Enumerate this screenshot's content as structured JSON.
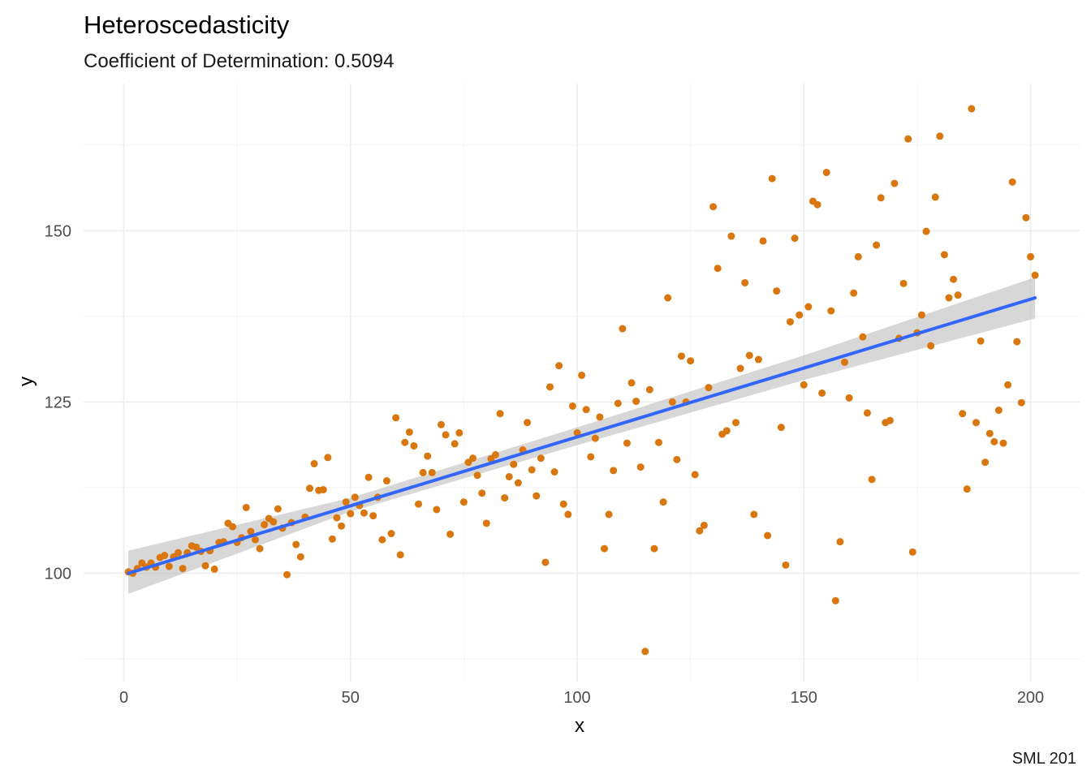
{
  "chart_data": {
    "type": "scatter",
    "title": "Heteroscedasticity",
    "subtitle": "Coefficient of Determination: 0.5094",
    "xlabel": "x",
    "ylabel": "y",
    "caption": "SML 201",
    "xlim": [
      -8,
      210
    ],
    "ylim": [
      87,
      173
    ],
    "x_ticks": [
      0,
      50,
      100,
      150,
      200
    ],
    "y_ticks": [
      100,
      125,
      150
    ],
    "x_tick_labels": [
      "0",
      "50",
      "100",
      "150",
      "200"
    ],
    "y_tick_labels": [
      "100",
      "125",
      "150"
    ],
    "grid": true,
    "point_color": "#d9770e",
    "line_color": "#3366ff",
    "band_color": "#bdbdbd",
    "fit": {
      "x": [
        1,
        201
      ],
      "y": [
        100.0,
        140.2
      ]
    },
    "confidence_band": {
      "x": [
        1,
        50,
        100,
        150,
        201
      ],
      "upper": [
        103.3,
        111.0,
        121.3,
        131.8,
        143.2
      ],
      "lower": [
        97.0,
        109.0,
        118.7,
        128.2,
        137.2
      ]
    },
    "points": [
      [
        1,
        100.2
      ],
      [
        2,
        100.0
      ],
      [
        3,
        100.7
      ],
      [
        4,
        101.5
      ],
      [
        5,
        100.9
      ],
      [
        6,
        101.5
      ],
      [
        7,
        100.9
      ],
      [
        8,
        102.3
      ],
      [
        9,
        102.6
      ],
      [
        10,
        101.0
      ],
      [
        11,
        102.4
      ],
      [
        12,
        103.0
      ],
      [
        13,
        100.7
      ],
      [
        14,
        103.0
      ],
      [
        15,
        104.0
      ],
      [
        16,
        103.8
      ],
      [
        17,
        103.2
      ],
      [
        18,
        101.1
      ],
      [
        19,
        103.3
      ],
      [
        20,
        100.6
      ],
      [
        21,
        104.5
      ],
      [
        22,
        104.6
      ],
      [
        23,
        107.3
      ],
      [
        24,
        106.8
      ],
      [
        25,
        104.5
      ],
      [
        26,
        105.2
      ],
      [
        27,
        109.6
      ],
      [
        28,
        106.1
      ],
      [
        29,
        104.9
      ],
      [
        30,
        103.6
      ],
      [
        31,
        107.1
      ],
      [
        32,
        108.0
      ],
      [
        33,
        107.5
      ],
      [
        34,
        109.4
      ],
      [
        35,
        106.6
      ],
      [
        36,
        99.8
      ],
      [
        37,
        107.4
      ],
      [
        38,
        104.2
      ],
      [
        39,
        102.4
      ],
      [
        40,
        108.2
      ],
      [
        41,
        112.4
      ],
      [
        42,
        116.0
      ],
      [
        43,
        112.1
      ],
      [
        44,
        112.2
      ],
      [
        45,
        116.9
      ],
      [
        46,
        105.0
      ],
      [
        47,
        108.1
      ],
      [
        48,
        106.9
      ],
      [
        49,
        110.4
      ],
      [
        50,
        108.7
      ],
      [
        51,
        111.1
      ],
      [
        52,
        109.9
      ],
      [
        53,
        108.8
      ],
      [
        54,
        114.0
      ],
      [
        55,
        108.4
      ],
      [
        56,
        111.1
      ],
      [
        57,
        104.9
      ],
      [
        58,
        113.5
      ],
      [
        59,
        105.8
      ],
      [
        60,
        122.7
      ],
      [
        61,
        102.7
      ],
      [
        62,
        119.1
      ],
      [
        63,
        120.6
      ],
      [
        64,
        118.6
      ],
      [
        65,
        110.1
      ],
      [
        66,
        114.7
      ],
      [
        67,
        117.1
      ],
      [
        68,
        114.7
      ],
      [
        69,
        109.3
      ],
      [
        70,
        121.7
      ],
      [
        71,
        120.2
      ],
      [
        72,
        105.7
      ],
      [
        73,
        118.9
      ],
      [
        74,
        120.5
      ],
      [
        75,
        110.4
      ],
      [
        76,
        116.2
      ],
      [
        77,
        116.8
      ],
      [
        78,
        114.3
      ],
      [
        79,
        111.7
      ],
      [
        80,
        107.3
      ],
      [
        81,
        116.7
      ],
      [
        82,
        117.3
      ],
      [
        83,
        123.3
      ],
      [
        84,
        111.0
      ],
      [
        85,
        114.1
      ],
      [
        86,
        115.9
      ],
      [
        87,
        113.2
      ],
      [
        88,
        118.0
      ],
      [
        89,
        122.0
      ],
      [
        90,
        115.1
      ],
      [
        91,
        111.3
      ],
      [
        92,
        116.8
      ],
      [
        93,
        101.6
      ],
      [
        94,
        127.2
      ],
      [
        95,
        114.8
      ],
      [
        96,
        130.3
      ],
      [
        97,
        110.1
      ],
      [
        98,
        108.6
      ],
      [
        99,
        124.4
      ],
      [
        100,
        120.5
      ],
      [
        101,
        128.9
      ],
      [
        102,
        123.9
      ],
      [
        103,
        117.0
      ],
      [
        104,
        119.7
      ],
      [
        105,
        122.8
      ],
      [
        106,
        103.6
      ],
      [
        107,
        108.6
      ],
      [
        108,
        115.0
      ],
      [
        109,
        124.8
      ],
      [
        110,
        135.7
      ],
      [
        111,
        119.0
      ],
      [
        112,
        127.8
      ],
      [
        113,
        125.1
      ],
      [
        114,
        115.5
      ],
      [
        115,
        88.6
      ],
      [
        116,
        126.8
      ],
      [
        117,
        103.6
      ],
      [
        118,
        119.1
      ],
      [
        119,
        110.4
      ],
      [
        120,
        140.2
      ],
      [
        121,
        125.0
      ],
      [
        122,
        116.6
      ],
      [
        123,
        131.7
      ],
      [
        124,
        125.0
      ],
      [
        125,
        131.0
      ],
      [
        126,
        114.4
      ],
      [
        127,
        106.2
      ],
      [
        128,
        107.0
      ],
      [
        129,
        127.1
      ],
      [
        130,
        153.5
      ],
      [
        131,
        144.5
      ],
      [
        132,
        120.3
      ],
      [
        133,
        120.8
      ],
      [
        134,
        149.2
      ],
      [
        135,
        122.0
      ],
      [
        136,
        129.9
      ],
      [
        137,
        142.4
      ],
      [
        138,
        131.8
      ],
      [
        139,
        108.6
      ],
      [
        140,
        131.2
      ],
      [
        141,
        148.5
      ],
      [
        142,
        105.5
      ],
      [
        143,
        157.6
      ],
      [
        144,
        141.2
      ],
      [
        145,
        121.3
      ],
      [
        146,
        101.2
      ],
      [
        147,
        136.7
      ],
      [
        148,
        148.9
      ],
      [
        149,
        137.7
      ],
      [
        150,
        127.5
      ],
      [
        151,
        138.9
      ],
      [
        152,
        154.3
      ],
      [
        153,
        153.8
      ],
      [
        154,
        126.3
      ],
      [
        155,
        158.5
      ],
      [
        156,
        138.3
      ],
      [
        157,
        96.0
      ],
      [
        158,
        104.6
      ],
      [
        159,
        130.8
      ],
      [
        160,
        125.6
      ],
      [
        161,
        140.9
      ],
      [
        162,
        146.2
      ],
      [
        163,
        134.5
      ],
      [
        164,
        123.4
      ],
      [
        165,
        113.7
      ],
      [
        166,
        147.9
      ],
      [
        167,
        154.8
      ],
      [
        168,
        122.0
      ],
      [
        169,
        122.3
      ],
      [
        170,
        156.9
      ],
      [
        171,
        134.3
      ],
      [
        172,
        142.3
      ],
      [
        173,
        163.4
      ],
      [
        174,
        103.1
      ],
      [
        175,
        135.1
      ],
      [
        176,
        137.7
      ],
      [
        177,
        149.9
      ],
      [
        178,
        133.2
      ],
      [
        179,
        154.9
      ],
      [
        180,
        163.8
      ],
      [
        181,
        146.5
      ],
      [
        182,
        140.2
      ],
      [
        183,
        142.9
      ],
      [
        184,
        140.6
      ],
      [
        185,
        123.3
      ],
      [
        186,
        112.3
      ],
      [
        187,
        167.8
      ],
      [
        188,
        122.0
      ],
      [
        189,
        133.9
      ],
      [
        190,
        116.2
      ],
      [
        191,
        120.4
      ],
      [
        192,
        119.2
      ],
      [
        193,
        123.8
      ],
      [
        194,
        119.0
      ],
      [
        195,
        127.5
      ],
      [
        196,
        157.1
      ],
      [
        197,
        133.8
      ],
      [
        198,
        124.9
      ],
      [
        199,
        151.9
      ],
      [
        200,
        146.2
      ],
      [
        201,
        143.5
      ]
    ]
  }
}
